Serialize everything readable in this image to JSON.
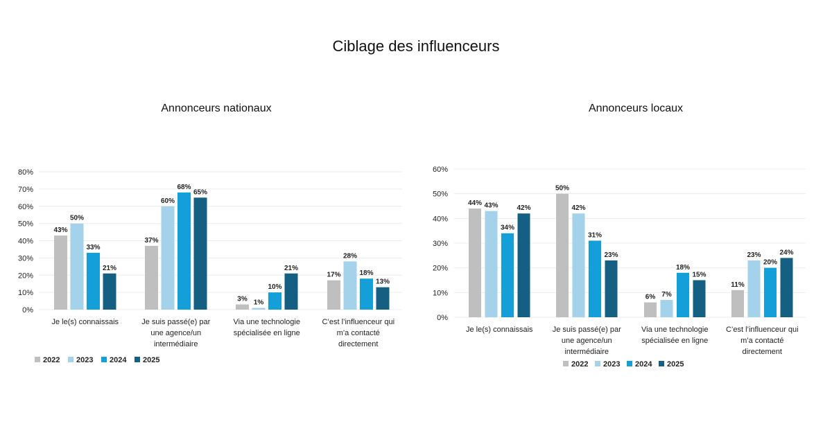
{
  "page": {
    "title": "Ciblage des influenceurs"
  },
  "colors": {
    "2022": "#bfbfbf",
    "2023": "#a3d2ea",
    "2024": "#149fd8",
    "2025": "#155f82"
  },
  "chart_data": [
    {
      "type": "bar",
      "title": "Annonceurs nationaux",
      "categories": [
        [
          "Je le(s) connaissais"
        ],
        [
          "Je suis passé(e) par",
          "une agence/un",
          "intermédiaire"
        ],
        [
          "Via une technologie",
          "spécialisée en ligne"
        ],
        [
          "C’est l’influenceur qui",
          "m’a contacté",
          "directement"
        ]
      ],
      "series": [
        {
          "name": "2022",
          "values": [
            43,
            37,
            3,
            17
          ]
        },
        {
          "name": "2023",
          "values": [
            50,
            60,
            1,
            28
          ]
        },
        {
          "name": "2024",
          "values": [
            33,
            68,
            10,
            18
          ]
        },
        {
          "name": "2025",
          "values": [
            21,
            65,
            21,
            13
          ]
        }
      ],
      "ylim": [
        0,
        80
      ],
      "yticks": [
        "0%",
        "10%",
        "20%",
        "30%",
        "40%",
        "50%",
        "60%",
        "70%",
        "80%"
      ],
      "value_suffix": "%",
      "grid": true,
      "legend": "bottom-left"
    },
    {
      "type": "bar",
      "title": "Annonceurs locaux",
      "categories": [
        [
          "Je le(s) connaissais"
        ],
        [
          "Je suis passé(e) par",
          "une agence/un",
          "intermédiaire"
        ],
        [
          "Via une technologie",
          "spécialisée en ligne"
        ],
        [
          "C’est l’influenceur qui",
          "m’a contacté",
          "directement"
        ]
      ],
      "series": [
        {
          "name": "2022",
          "values": [
            44,
            50,
            6,
            11
          ]
        },
        {
          "name": "2023",
          "values": [
            43,
            42,
            7,
            23
          ]
        },
        {
          "name": "2024",
          "values": [
            34,
            31,
            18,
            20
          ]
        },
        {
          "name": "2025",
          "values": [
            42,
            23,
            15,
            24
          ]
        }
      ],
      "ylim": [
        0,
        60
      ],
      "yticks": [
        "0%",
        "10%",
        "20%",
        "30%",
        "40%",
        "50%",
        "60%"
      ],
      "value_suffix": "%",
      "grid": true,
      "legend": "bottom-center"
    }
  ]
}
